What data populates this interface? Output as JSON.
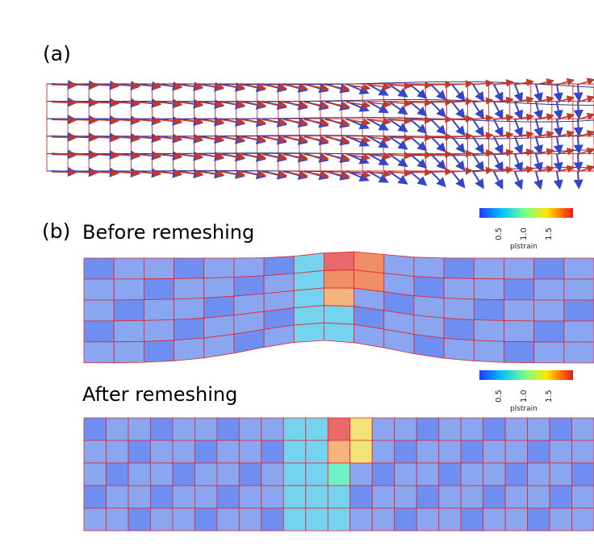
{
  "panel_a": {
    "label": "(a)"
  },
  "panel_b": {
    "label": "(b)",
    "before": {
      "title": "Before remeshing"
    },
    "after": {
      "title": "After remeshing"
    }
  },
  "colorbar": {
    "title": "plstrain",
    "ticks": [
      "0.5",
      "1.0",
      "1.5"
    ],
    "colors": [
      "#1f3cff",
      "#00c8ff",
      "#7fff7f",
      "#ffe600",
      "#ff6a00",
      "#e61a1a"
    ]
  },
  "colors": {
    "mesh_edge": "#e0262b",
    "cell_low": "#6f8ef2",
    "cell_mid_low": "#8aa6f0",
    "cell_cyan": "#76d3f0",
    "cell_teal": "#6ff0c7",
    "cell_orange": "#f4b67c",
    "cell_dark_orange": "#ef8e67",
    "cell_red": "#e86a6a",
    "cell_yellow": "#f2e27a",
    "arrow_blue": "#3545c8",
    "arrow_red": "#c0392b",
    "mesh_blue": "#1a237e"
  }
}
